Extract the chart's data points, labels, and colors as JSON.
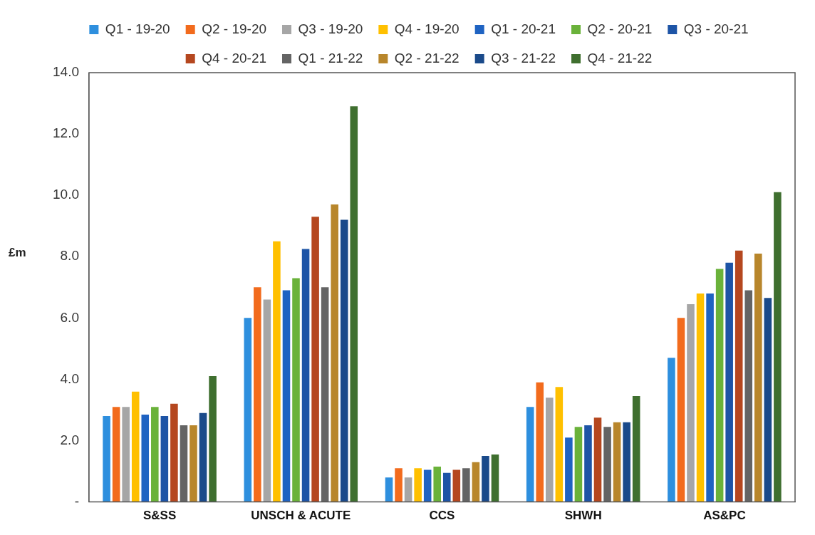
{
  "chart_data": {
    "type": "bar",
    "ylabel": "£m",
    "categories": [
      "S&SS",
      "UNSCH & ACUTE",
      "CCS",
      "SHWH",
      "AS&PC"
    ],
    "ylim": [
      0,
      14
    ],
    "yticks": [
      {
        "value": 0,
        "label": "-"
      },
      {
        "value": 2,
        "label": "2.0"
      },
      {
        "value": 4,
        "label": "4.0"
      },
      {
        "value": 6,
        "label": "6.0"
      },
      {
        "value": 8,
        "label": "8.0"
      },
      {
        "value": 10,
        "label": "10.0"
      },
      {
        "value": 12,
        "label": "12.0"
      },
      {
        "value": 14,
        "label": "14.0"
      }
    ],
    "grid": false,
    "legend": "top",
    "series": [
      {
        "name": "Q1 - 19-20",
        "color": "#2e8fde",
        "values": [
          2.8,
          6.0,
          0.8,
          3.1,
          4.7
        ]
      },
      {
        "name": "Q2 - 19-20",
        "color": "#f26b1d",
        "values": [
          3.1,
          7.0,
          1.1,
          3.9,
          6.0
        ]
      },
      {
        "name": "Q3 - 19-20",
        "color": "#a6a6a6",
        "values": [
          3.1,
          6.6,
          0.8,
          3.4,
          6.45
        ]
      },
      {
        "name": "Q4 - 19-20",
        "color": "#ffc000",
        "values": [
          3.6,
          8.5,
          1.1,
          3.75,
          6.8
        ]
      },
      {
        "name": "Q1 - 20-21",
        "color": "#1f63c2",
        "values": [
          2.85,
          6.9,
          1.05,
          2.1,
          6.8
        ]
      },
      {
        "name": "Q2 - 20-21",
        "color": "#6ab23a",
        "values": [
          3.1,
          7.3,
          1.15,
          2.45,
          7.6
        ]
      },
      {
        "name": "Q3 - 20-21",
        "color": "#1d54a6",
        "values": [
          2.8,
          8.25,
          0.95,
          2.5,
          7.8
        ]
      },
      {
        "name": "Q4 - 20-21",
        "color": "#b5471f",
        "values": [
          3.2,
          9.3,
          1.05,
          2.75,
          8.2
        ]
      },
      {
        "name": "Q1 - 21-22",
        "color": "#646464",
        "values": [
          2.5,
          7.0,
          1.1,
          2.45,
          6.9
        ]
      },
      {
        "name": "Q2 - 21-22",
        "color": "#b8862b",
        "values": [
          2.5,
          9.7,
          1.3,
          2.6,
          8.1
        ]
      },
      {
        "name": "Q3 - 21-22",
        "color": "#1a4a8a",
        "values": [
          2.9,
          9.2,
          1.5,
          2.6,
          6.65
        ]
      },
      {
        "name": "Q4 - 21-22",
        "color": "#3f6f2f",
        "values": [
          4.1,
          12.9,
          1.55,
          3.45,
          10.1
        ]
      }
    ]
  }
}
